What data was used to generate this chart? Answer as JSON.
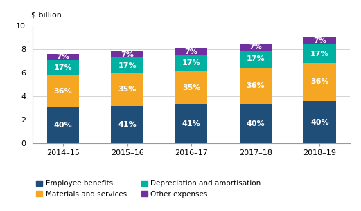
{
  "years": [
    "2014–15",
    "2015–16",
    "2016–17",
    "2017–18",
    "2018–19"
  ],
  "employee_benefits": [
    3.04,
    3.2,
    3.3,
    3.38,
    3.6
  ],
  "materials_services": [
    2.74,
    2.73,
    2.82,
    3.04,
    3.24
  ],
  "depreciation": [
    1.29,
    1.33,
    1.37,
    1.44,
    1.53
  ],
  "other_expenses": [
    0.53,
    0.55,
    0.56,
    0.59,
    0.63
  ],
  "labels_employee": [
    "40%",
    "41%",
    "41%",
    "40%",
    "40%"
  ],
  "labels_materials": [
    "36%",
    "35%",
    "35%",
    "36%",
    "36%"
  ],
  "labels_depreciation": [
    "17%",
    "17%",
    "17%",
    "17%",
    "17%"
  ],
  "labels_other": [
    "7%",
    "7%",
    "7%",
    "7%",
    "7%"
  ],
  "color_employee": "#1f4e79",
  "color_materials": "#f5a623",
  "color_depreciation": "#00b0a0",
  "color_other": "#7030a0",
  "ylabel": "$ billion",
  "ylim": [
    0,
    10
  ],
  "yticks": [
    0,
    2,
    4,
    6,
    8,
    10
  ],
  "bar_width": 0.5,
  "legend_labels": [
    "Employee benefits",
    "Materials and services",
    "Depreciation and amortisation",
    "Other expenses"
  ]
}
